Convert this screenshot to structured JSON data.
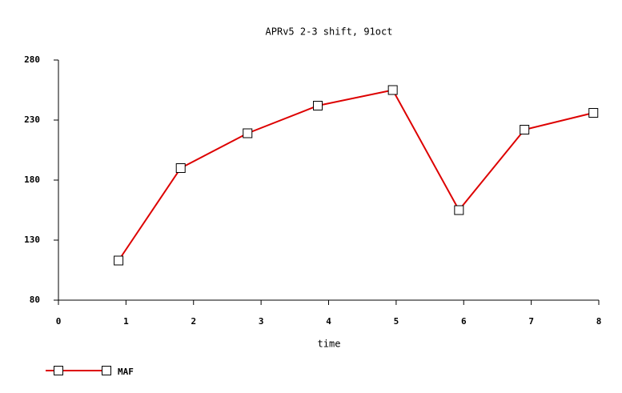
{
  "chart_data": {
    "type": "line",
    "title": "APRv5 2-3 shift, 91oct",
    "x_label": "time",
    "x": [
      0.89,
      1.81,
      2.8,
      3.84,
      4.95,
      5.93,
      6.9,
      7.92
    ],
    "series": [
      {
        "name": "MAF",
        "color": "#dd0000",
        "values": [
          113,
          190,
          219,
          242,
          255,
          155,
          222,
          236
        ]
      }
    ],
    "xlim": [
      0,
      8
    ],
    "xticks": [
      0,
      1,
      2,
      3,
      4,
      5,
      6,
      7,
      8
    ],
    "ylim": [
      80,
      280
    ],
    "yticks": [
      80,
      130,
      180,
      230,
      280
    ],
    "grid": false,
    "legend": "bottom-left"
  }
}
